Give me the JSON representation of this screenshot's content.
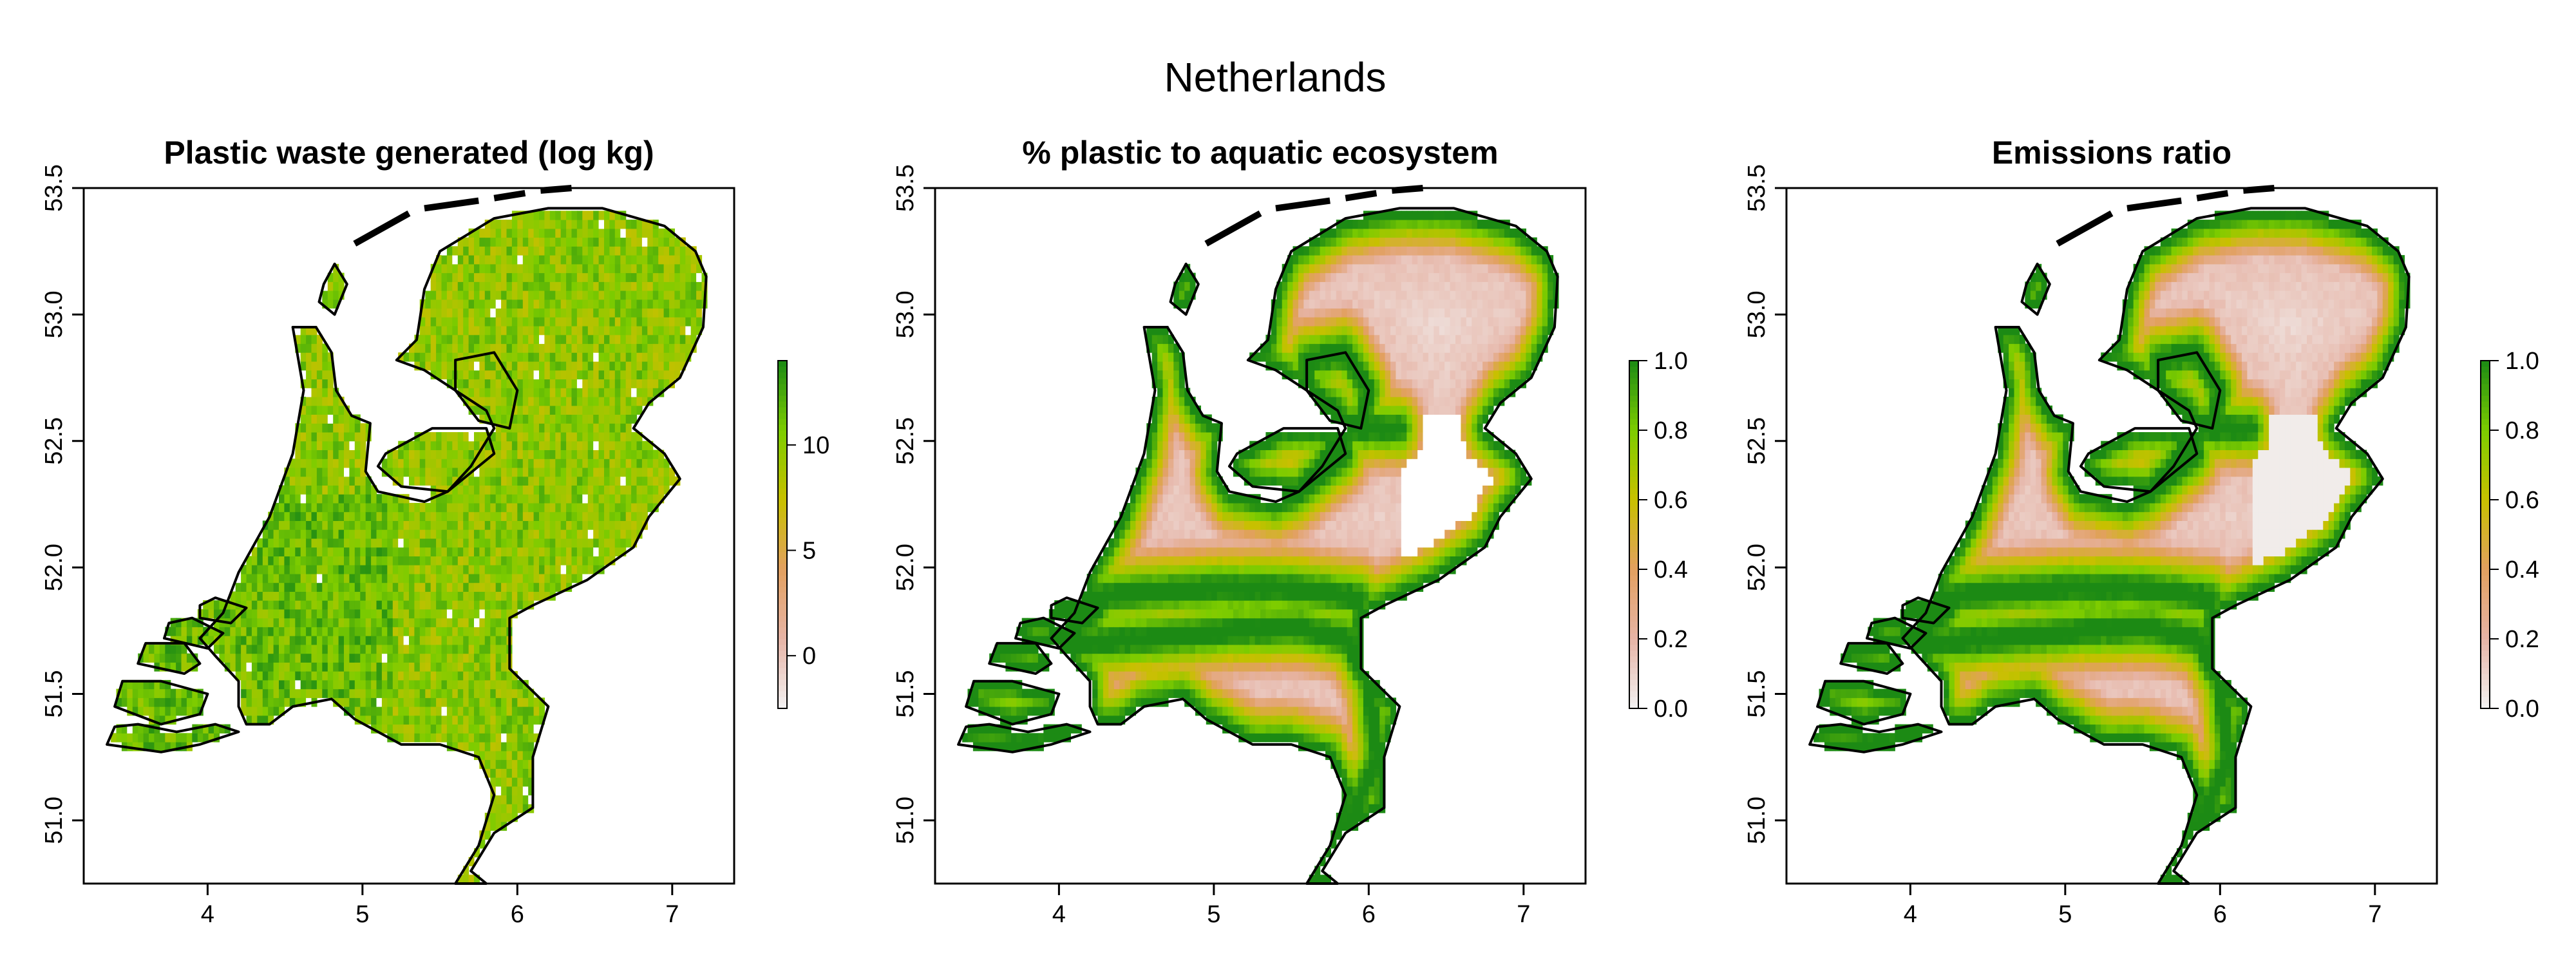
{
  "title": "Netherlands",
  "colors": {
    "scale": [
      "#f2f2f2",
      "#e6b4a6",
      "#e2a060",
      "#c8c000",
      "#7dcc00",
      "#1c8a14"
    ],
    "na": "#ffffff"
  },
  "chart_data": [
    {
      "type": "heatmap",
      "title": "Plastic waste generated (log kg)",
      "xlim": [
        3.2,
        7.4
      ],
      "ylim": [
        50.75,
        53.5
      ],
      "xticks": [
        "4",
        "5",
        "6",
        "7"
      ],
      "yticks": [
        "51.0",
        "51.5",
        "52.0",
        "52.5",
        "53.0",
        "53.5"
      ],
      "colorbar": {
        "min": -2.5,
        "max": 14,
        "ticks": [
          "0",
          "5",
          "10"
        ]
      },
      "pattern": "uniform"
    },
    {
      "type": "heatmap",
      "title": "% plastic to aquatic ecosystem",
      "xlim": [
        3.2,
        7.4
      ],
      "ylim": [
        50.75,
        53.5
      ],
      "xticks": [
        "4",
        "5",
        "6",
        "7"
      ],
      "yticks": [
        "51.0",
        "51.5",
        "52.0",
        "52.5",
        "53.0",
        "53.5"
      ],
      "colorbar": {
        "min": 0,
        "max": 1,
        "ticks": [
          "0.0",
          "0.2",
          "0.4",
          "0.6",
          "0.8",
          "1.0"
        ]
      },
      "pattern": "distance"
    },
    {
      "type": "heatmap",
      "title": "Emissions ratio",
      "xlim": [
        3.2,
        7.4
      ],
      "ylim": [
        50.75,
        53.5
      ],
      "xticks": [
        "4",
        "5",
        "6",
        "7"
      ],
      "yticks": [
        "51.0",
        "51.5",
        "52.0",
        "52.5",
        "53.0",
        "53.5"
      ],
      "colorbar": {
        "min": 0,
        "max": 1,
        "ticks": [
          "0.0",
          "0.2",
          "0.4",
          "0.6",
          "0.8",
          "1.0"
        ]
      },
      "pattern": "ratio"
    }
  ]
}
